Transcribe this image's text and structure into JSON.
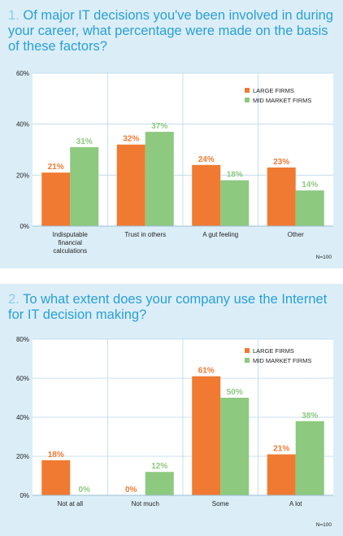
{
  "colors": {
    "large_firms": "#f07a31",
    "mid_market_firms": "#8dc97f",
    "title_text": "#2a9fd6",
    "title_number": "#8ccbea",
    "panel_background": "#dbeef8",
    "grid": "#b9d9ec"
  },
  "questions": [
    {
      "number": "1.",
      "text": "Of major IT decisions you've been involved in during your career, what percentage were made on the basis of these factors?",
      "note": "N=100"
    },
    {
      "number": "2.",
      "text": "To what extent does your company use the Internet for IT decision making?",
      "note": "N=100"
    }
  ],
  "chart_data": [
    {
      "type": "bar",
      "categories": [
        [
          "Indisputable",
          "financial",
          "calculations"
        ],
        [
          "Trust in others"
        ],
        [
          "A gut feeling"
        ],
        [
          "Other"
        ]
      ],
      "series": [
        {
          "name": "LARGE FIRMS",
          "values": [
            21,
            32,
            24,
            23
          ],
          "labels": [
            "21%",
            "32%",
            "24%",
            "23%"
          ]
        },
        {
          "name": "MID MARKET FIRMS",
          "values": [
            31,
            37,
            18,
            14
          ],
          "labels": [
            "31%",
            "37%",
            "18%",
            "14%"
          ]
        }
      ],
      "ylim": [
        0,
        60
      ],
      "yticks": [
        0,
        20,
        40,
        60
      ],
      "ytick_labels": [
        "0%",
        "20%",
        "40%",
        "60%"
      ],
      "grid": true,
      "legend_position": "top-right"
    },
    {
      "type": "bar",
      "categories": [
        [
          "Not at all"
        ],
        [
          "Not much"
        ],
        [
          "Some"
        ],
        [
          "A lot"
        ]
      ],
      "series": [
        {
          "name": "LARGE FIRMS",
          "values": [
            18,
            0,
            61,
            21
          ],
          "labels": [
            "18%",
            "0%",
            "61%",
            "21%"
          ]
        },
        {
          "name": "MID MARKET FIRMS",
          "values": [
            0,
            12,
            50,
            38
          ],
          "labels": [
            "0%",
            "12%",
            "50%",
            "38%"
          ]
        }
      ],
      "ylim": [
        0,
        80
      ],
      "yticks": [
        0,
        20,
        40,
        60,
        80
      ],
      "ytick_labels": [
        "0%",
        "20%",
        "40%",
        "60%",
        "80%"
      ],
      "grid": true,
      "legend_position": "top-right"
    }
  ]
}
